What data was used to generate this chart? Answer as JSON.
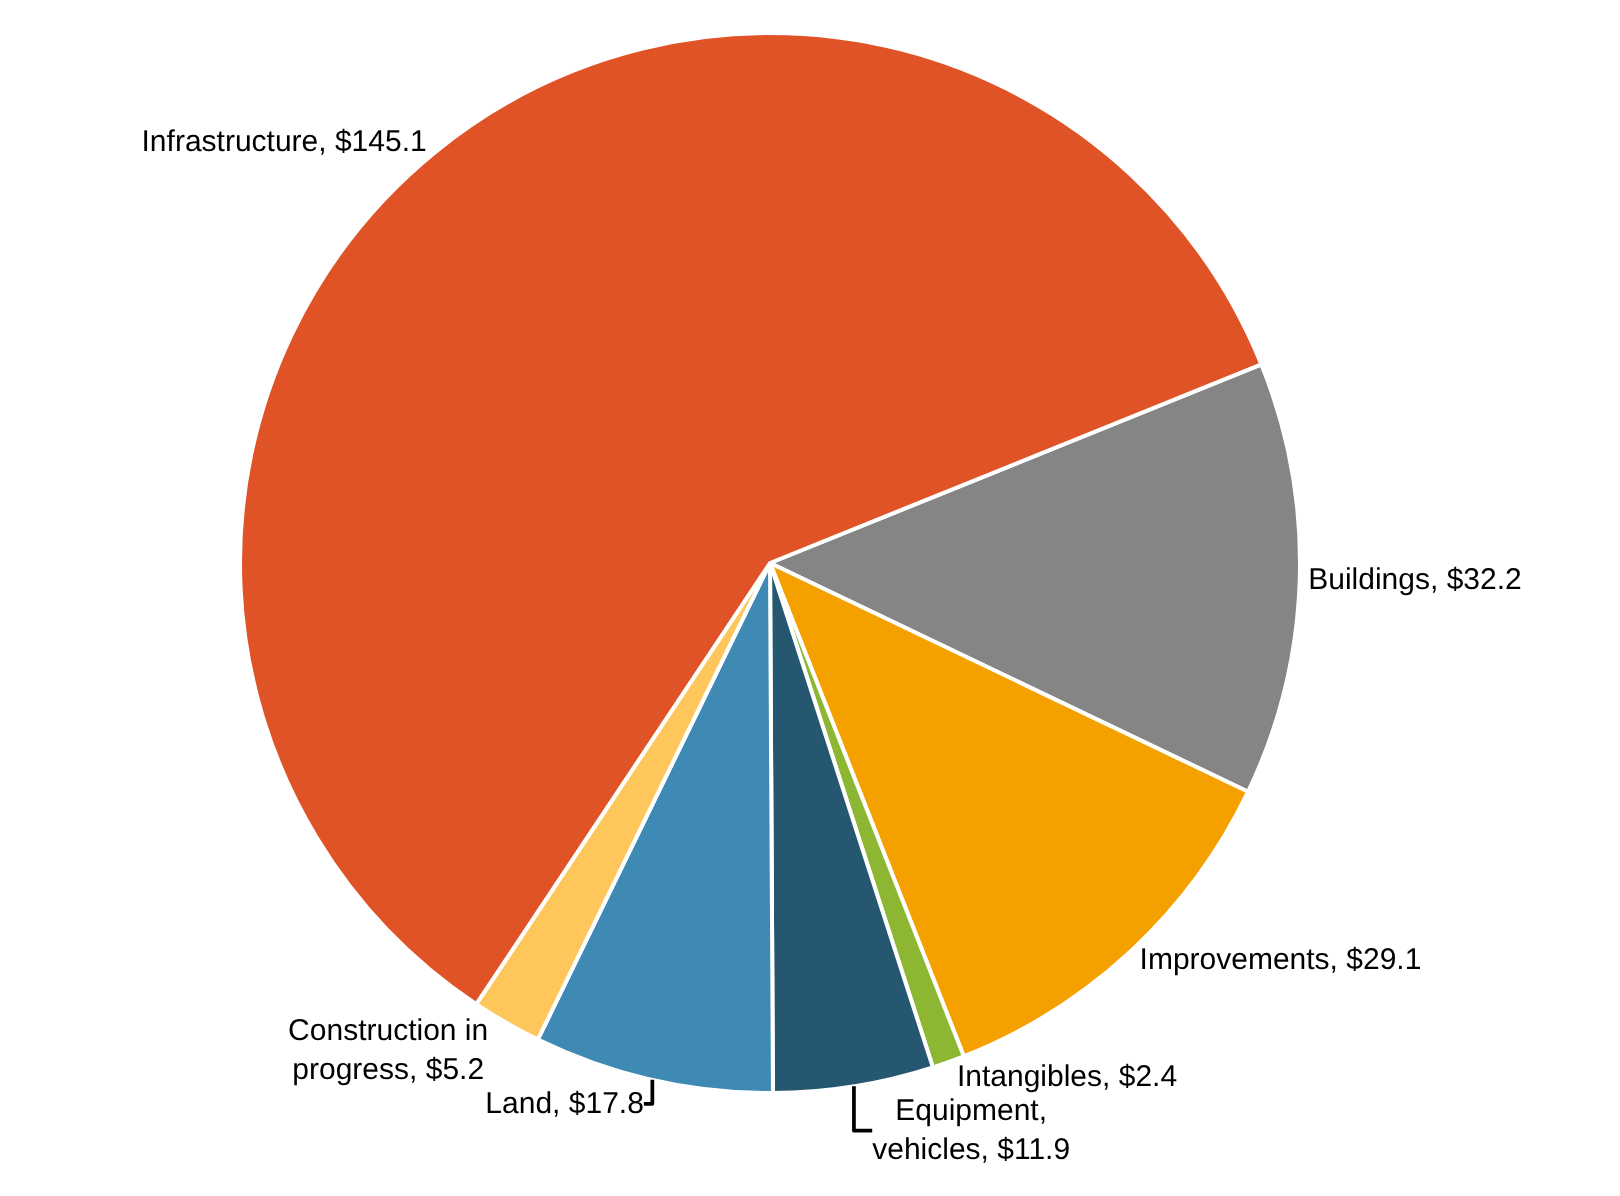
{
  "chart_data": {
    "type": "pie",
    "categories": [
      "Buildings",
      "Improvements",
      "Intangibles",
      "Equipment, vehicles",
      "Land",
      "Construction in progress",
      "Infrastructure"
    ],
    "values": [
      32.2,
      29.1,
      2.4,
      11.9,
      17.8,
      5.2,
      145.1
    ],
    "value_labels": [
      "$32.2",
      "$29.1",
      "$2.4",
      "$11.9",
      "$17.8",
      "$5.2",
      "$145.1"
    ],
    "colors": [
      "#858585",
      "#f4a100",
      "#8db733",
      "#265770",
      "#3f8ab5",
      "#ffc65c",
      "#e05327"
    ],
    "legend": false
  }
}
